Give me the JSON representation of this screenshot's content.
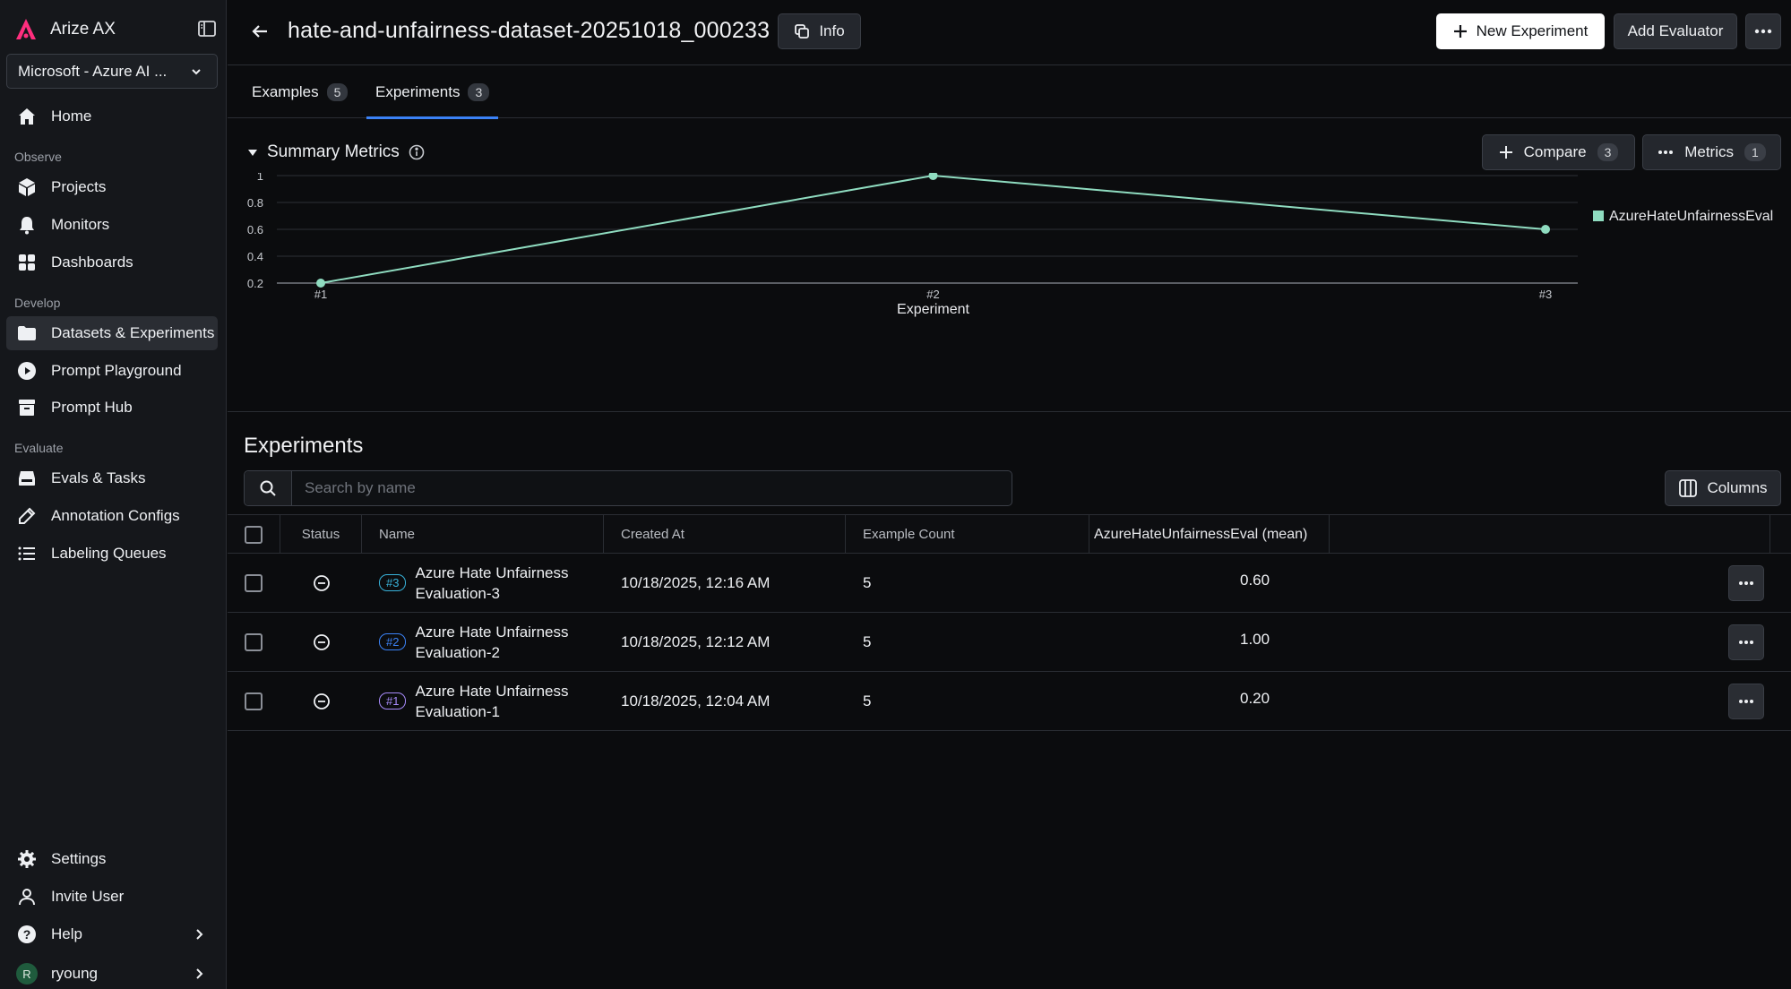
{
  "brand": {
    "name": "Arize AX"
  },
  "org_selector": {
    "value": "Microsoft - Azure AI ..."
  },
  "sidebar": {
    "home": "Home",
    "sections": {
      "observe": "Observe",
      "develop": "Develop",
      "evaluate": "Evaluate"
    },
    "observe_items": [
      "Projects",
      "Monitors",
      "Dashboards"
    ],
    "develop_items": [
      "Datasets & Experiments",
      "Prompt Playground",
      "Prompt Hub"
    ],
    "evaluate_items": [
      "Evals & Tasks",
      "Annotation Configs",
      "Labeling Queues"
    ],
    "bottom_items": {
      "settings": "Settings",
      "invite": "Invite User",
      "help": "Help",
      "user": "ryoung",
      "avatar_initial": "R"
    }
  },
  "header": {
    "title": "hate-and-unfairness-dataset-20251018_000233",
    "info_label": "Info",
    "new_experiment_label": "New Experiment",
    "add_evaluator_label": "Add Evaluator"
  },
  "tabs": [
    {
      "label": "Examples",
      "count": "5"
    },
    {
      "label": "Experiments",
      "count": "3",
      "active": true
    }
  ],
  "summary": {
    "title": "Summary Metrics",
    "compare_label": "Compare",
    "compare_count": "3",
    "metrics_label": "Metrics",
    "metrics_count": "1"
  },
  "chart_data": {
    "type": "line",
    "categories": [
      "#1",
      "#2",
      "#3"
    ],
    "series": [
      {
        "name": "AzureHateUnfairnessEval",
        "values": [
          0.2,
          1.0,
          0.6
        ],
        "color": "#8fdcc0"
      }
    ],
    "xlabel": "Experiment",
    "ylabel": "",
    "yticks": [
      0.2,
      0.4,
      0.6,
      0.8,
      1
    ],
    "ylim": [
      0.2,
      1
    ],
    "grid": true,
    "legend": "top-right"
  },
  "experiments": {
    "title": "Experiments",
    "search_placeholder": "Search by name",
    "columns_label": "Columns",
    "headers": [
      "Status",
      "Name",
      "Created At",
      "Example Count",
      "AzureHateUnfairnessEval (mean)"
    ],
    "rows": [
      {
        "badge": "#3",
        "badge_color": "#38b2d9",
        "name_line1": "Azure Hate Unfairness",
        "name_line2": "Evaluation-3",
        "created_at": "10/18/2025, 12:16 AM",
        "example_count": "5",
        "eval_mean": "0.60"
      },
      {
        "badge": "#2",
        "badge_color": "#3b82f6",
        "name_line1": "Azure Hate Unfairness",
        "name_line2": "Evaluation-2",
        "created_at": "10/18/2025, 12:12 AM",
        "example_count": "5",
        "eval_mean": "1.00"
      },
      {
        "badge": "#1",
        "badge_color": "#a78bfa",
        "name_line1": "Azure Hate Unfairness",
        "name_line2": "Evaluation-1",
        "created_at": "10/18/2025, 12:04 AM",
        "example_count": "5",
        "eval_mean": "0.20"
      }
    ]
  }
}
